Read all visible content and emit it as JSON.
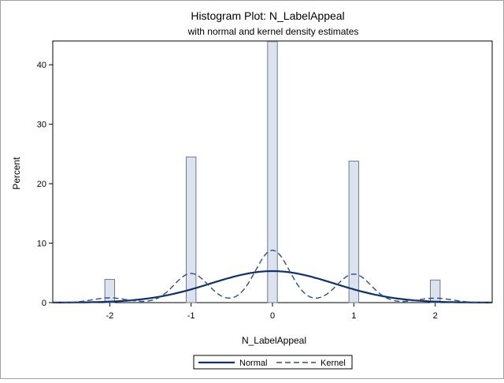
{
  "chart_data": {
    "type": "histogram",
    "title": "Histogram Plot: N_LabelAppeal",
    "subtitle": "with normal and kernel density estimates",
    "xlabel": "N_LabelAppeal",
    "ylabel": "Percent",
    "xlim": [
      -2.7,
      2.7
    ],
    "ylim": [
      0,
      44
    ],
    "xticks": [
      -2,
      -1,
      0,
      1,
      2
    ],
    "yticks": [
      0,
      10,
      20,
      30,
      40
    ],
    "bars": [
      {
        "x": -2,
        "value": 3.9
      },
      {
        "x": -1,
        "value": 24.5
      },
      {
        "x": 0,
        "value": 43.9
      },
      {
        "x": 1,
        "value": 23.8
      },
      {
        "x": 2,
        "value": 3.8
      }
    ],
    "bar_fill": "#dce3ef",
    "bar_stroke": "#6b7a8f",
    "normal_curve": {
      "name": "Normal",
      "mean": 0,
      "peak": 5.3,
      "sigma": 0.76,
      "color": "#0d2f73"
    },
    "kernel_curve": {
      "name": "Kernel",
      "peaks": [
        {
          "x": -2,
          "value": 0.8
        },
        {
          "x": -1,
          "value": 4.9
        },
        {
          "x": 0,
          "value": 8.8
        },
        {
          "x": 1,
          "value": 4.8
        },
        {
          "x": 2,
          "value": 0.75
        }
      ],
      "bandwidth": 0.21,
      "color": "#2b4f82"
    },
    "legend_placement": "bottom"
  }
}
